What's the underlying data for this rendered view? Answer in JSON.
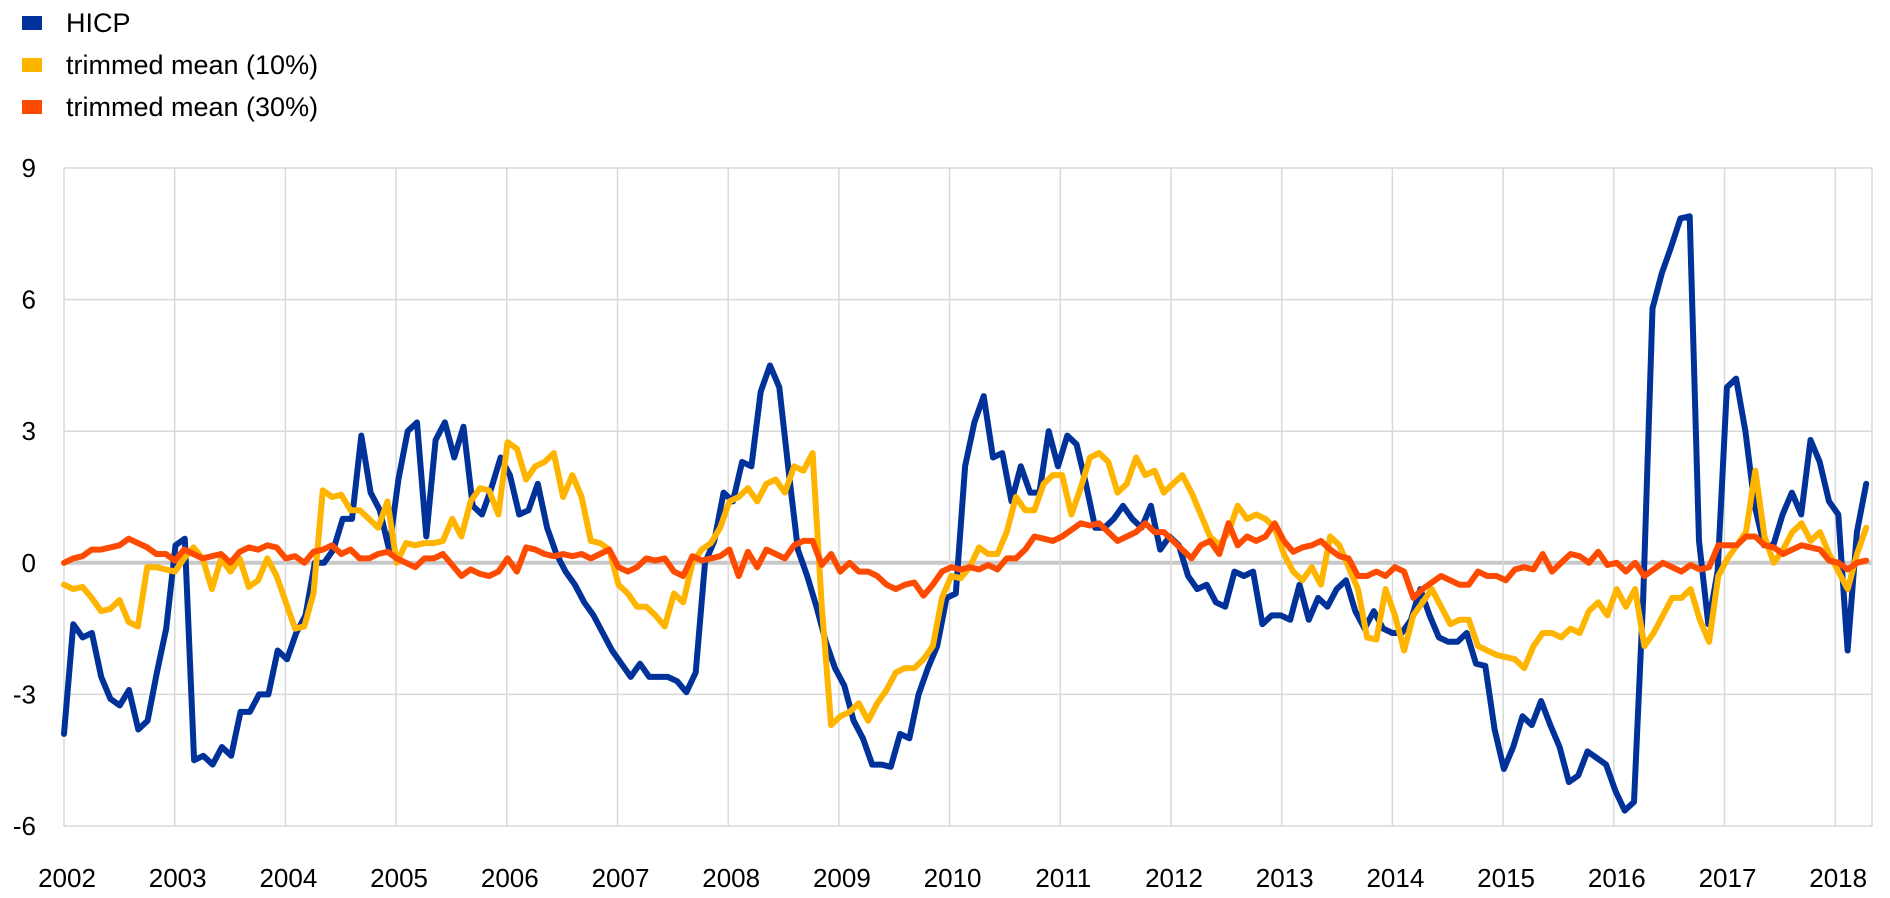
{
  "chart_data": {
    "type": "line",
    "title": "",
    "xlabel": "",
    "ylabel": "",
    "ylim": [
      -6,
      9
    ],
    "yticks": [
      "9",
      "6",
      "3",
      "0",
      "-3",
      "-6"
    ],
    "ytick_values": [
      9,
      6,
      3,
      0,
      -3,
      -6
    ],
    "xticks": [
      "2002",
      "2003",
      "2004",
      "2005",
      "2006",
      "2007",
      "2008",
      "2009",
      "2010",
      "2011",
      "2012",
      "2013",
      "2014",
      "2015",
      "2016",
      "2017",
      "2018"
    ],
    "xlim": [
      2002.0,
      2018.33
    ],
    "grid": true,
    "legend_position": "top-left",
    "x_start": 2002.0,
    "x_end": 2018.28,
    "sampling": "approximately monthly, evenly spaced from x_start to x_end",
    "series": [
      {
        "name": "HICP",
        "color": "#003299",
        "values": [
          -3.9,
          -1.4,
          -1.7,
          -1.6,
          -2.6,
          -3.1,
          -3.25,
          -2.9,
          -3.8,
          -3.6,
          -2.5,
          -1.5,
          0.4,
          0.55,
          -4.5,
          -4.4,
          -4.6,
          -4.2,
          -4.4,
          -3.4,
          -3.4,
          -3.0,
          -3.0,
          -2.0,
          -2.2,
          -1.6,
          -1.2,
          0.0,
          0.0,
          0.3,
          1.0,
          1.0,
          2.9,
          1.6,
          1.2,
          0.3,
          1.9,
          3.0,
          3.2,
          0.6,
          2.8,
          3.2,
          2.4,
          3.1,
          1.3,
          1.1,
          1.7,
          2.4,
          2.0,
          1.1,
          1.2,
          1.8,
          0.8,
          0.2,
          -0.2,
          -0.5,
          -0.9,
          -1.2,
          -1.6,
          -2.0,
          -2.3,
          -2.6,
          -2.3,
          -2.6,
          -2.6,
          -2.6,
          -2.7,
          -2.95,
          -2.5,
          0.0,
          0.5,
          1.6,
          1.4,
          2.3,
          2.2,
          3.9,
          4.5,
          4.0,
          2.1,
          0.3,
          -0.3,
          -1.0,
          -1.8,
          -2.4,
          -2.8,
          -3.6,
          -4.0,
          -4.6,
          -4.6,
          -4.65,
          -3.9,
          -4.0,
          -3.0,
          -2.4,
          -1.9,
          -0.8,
          -0.7,
          2.2,
          3.2,
          3.8,
          2.4,
          2.5,
          1.4,
          2.2,
          1.6,
          1.6,
          3.0,
          2.2,
          2.9,
          2.7,
          1.8,
          0.8,
          0.8,
          1.0,
          1.3,
          1.0,
          0.8,
          1.3,
          0.3,
          0.6,
          0.4,
          -0.3,
          -0.6,
          -0.5,
          -0.9,
          -1.0,
          -0.2,
          -0.3,
          -0.2,
          -1.4,
          -1.2,
          -1.2,
          -1.3,
          -0.5,
          -1.3,
          -0.8,
          -1.0,
          -0.6,
          -0.4,
          -1.1,
          -1.5,
          -1.1,
          -1.5,
          -1.6,
          -1.6,
          -1.3,
          -0.6,
          -1.2,
          -1.7,
          -1.8,
          -1.8,
          -1.6,
          -2.3,
          -2.35,
          -3.8,
          -4.7,
          -4.2,
          -3.5,
          -3.7,
          -3.15,
          -3.7,
          -4.2,
          -5.0,
          -4.85,
          -4.3,
          -4.45,
          -4.6,
          -5.2,
          -5.65,
          -5.45,
          -0.8,
          5.8,
          6.6,
          7.2,
          7.85,
          7.9,
          0.5,
          -1.4,
          -0.2,
          4.0,
          4.2,
          3.0,
          1.3,
          0.4,
          0.4,
          1.1,
          1.6,
          1.1,
          2.8,
          2.3,
          1.4,
          1.1,
          -2.0,
          0.7,
          1.8
        ]
      },
      {
        "name": "trimmed mean (10%)",
        "color": "#FFB400",
        "values": [
          -0.5,
          -0.6,
          -0.55,
          -0.8,
          -1.1,
          -1.05,
          -0.85,
          -1.35,
          -1.45,
          -0.1,
          -0.1,
          -0.15,
          -0.2,
          0.1,
          0.35,
          0.1,
          -0.6,
          0.1,
          -0.2,
          0.1,
          -0.55,
          -0.4,
          0.1,
          -0.3,
          -0.9,
          -1.5,
          -1.45,
          -0.7,
          1.65,
          1.5,
          1.55,
          1.2,
          1.2,
          1.0,
          0.8,
          1.4,
          0.0,
          0.45,
          0.4,
          0.45,
          0.45,
          0.5,
          1.0,
          0.6,
          1.4,
          1.7,
          1.65,
          1.1,
          2.75,
          2.6,
          1.9,
          2.2,
          2.3,
          2.5,
          1.5,
          2.0,
          1.5,
          0.5,
          0.45,
          0.3,
          -0.5,
          -0.7,
          -1.0,
          -1.0,
          -1.2,
          -1.45,
          -0.7,
          -0.9,
          0.0,
          0.3,
          0.45,
          0.8,
          1.4,
          1.5,
          1.7,
          1.4,
          1.8,
          1.9,
          1.6,
          2.2,
          2.1,
          2.5,
          -1.0,
          -3.7,
          -3.5,
          -3.4,
          -3.2,
          -3.6,
          -3.2,
          -2.9,
          -2.5,
          -2.4,
          -2.4,
          -2.2,
          -1.9,
          -0.8,
          -0.3,
          -0.35,
          -0.1,
          0.35,
          0.2,
          0.2,
          0.7,
          1.5,
          1.2,
          1.2,
          1.8,
          2.0,
          2.0,
          1.1,
          1.7,
          2.4,
          2.5,
          2.3,
          1.6,
          1.8,
          2.4,
          2.0,
          2.1,
          1.6,
          1.8,
          2.0,
          1.6,
          1.1,
          0.6,
          0.4,
          0.7,
          1.3,
          1.0,
          1.1,
          1.0,
          0.8,
          0.2,
          -0.2,
          -0.4,
          -0.1,
          -0.5,
          0.6,
          0.4,
          -0.1,
          -0.6,
          -1.7,
          -1.75,
          -0.6,
          -1.2,
          -2.0,
          -1.2,
          -0.9,
          -0.6,
          -1.0,
          -1.4,
          -1.3,
          -1.3,
          -1.9,
          -2.0,
          -2.1,
          -2.15,
          -2.2,
          -2.4,
          -1.9,
          -1.6,
          -1.6,
          -1.7,
          -1.5,
          -1.6,
          -1.1,
          -0.9,
          -1.2,
          -0.6,
          -1.0,
          -0.6,
          -1.9,
          -1.6,
          -1.2,
          -0.8,
          -0.8,
          -0.6,
          -1.3,
          -1.8,
          -0.3,
          0.1,
          0.4,
          0.7,
          2.1,
          0.6,
          0.0,
          0.3,
          0.7,
          0.9,
          0.5,
          0.7,
          0.2,
          -0.2,
          -0.6,
          0.2,
          0.8
        ]
      },
      {
        "name": "trimmed mean (30%)",
        "color": "#FF4B00",
        "values": [
          0.0,
          0.1,
          0.15,
          0.3,
          0.3,
          0.35,
          0.4,
          0.55,
          0.45,
          0.35,
          0.2,
          0.2,
          0.05,
          0.3,
          0.2,
          0.1,
          0.15,
          0.2,
          0.0,
          0.25,
          0.35,
          0.3,
          0.4,
          0.35,
          0.1,
          0.15,
          0.0,
          0.25,
          0.3,
          0.4,
          0.2,
          0.3,
          0.1,
          0.1,
          0.2,
          0.25,
          0.1,
          0.0,
          -0.1,
          0.1,
          0.1,
          0.2,
          -0.05,
          -0.3,
          -0.15,
          -0.25,
          -0.3,
          -0.2,
          0.1,
          -0.2,
          0.35,
          0.3,
          0.2,
          0.15,
          0.2,
          0.15,
          0.2,
          0.1,
          0.2,
          0.3,
          -0.1,
          -0.2,
          -0.1,
          0.1,
          0.05,
          0.1,
          -0.2,
          -0.3,
          0.15,
          0.05,
          0.1,
          0.15,
          0.3,
          -0.3,
          0.25,
          -0.1,
          0.3,
          0.2,
          0.1,
          0.4,
          0.5,
          0.5,
          -0.05,
          0.2,
          -0.2,
          0.0,
          -0.2,
          -0.2,
          -0.3,
          -0.5,
          -0.6,
          -0.5,
          -0.45,
          -0.75,
          -0.5,
          -0.2,
          -0.1,
          -0.15,
          -0.1,
          -0.15,
          -0.05,
          -0.15,
          0.1,
          0.1,
          0.3,
          0.6,
          0.55,
          0.5,
          0.6,
          0.75,
          0.9,
          0.85,
          0.9,
          0.7,
          0.5,
          0.6,
          0.7,
          0.9,
          0.7,
          0.7,
          0.5,
          0.3,
          0.1,
          0.4,
          0.5,
          0.2,
          0.9,
          0.4,
          0.6,
          0.5,
          0.6,
          0.9,
          0.5,
          0.25,
          0.35,
          0.4,
          0.5,
          0.3,
          0.15,
          0.1,
          -0.3,
          -0.3,
          -0.2,
          -0.3,
          -0.1,
          -0.2,
          -0.8,
          -0.6,
          -0.45,
          -0.3,
          -0.4,
          -0.5,
          -0.5,
          -0.2,
          -0.3,
          -0.3,
          -0.4,
          -0.15,
          -0.1,
          -0.15,
          0.2,
          -0.2,
          0.0,
          0.2,
          0.15,
          0.0,
          0.25,
          -0.05,
          0.0,
          -0.2,
          0.0,
          -0.3,
          -0.15,
          0.0,
          -0.1,
          -0.2,
          -0.05,
          -0.15,
          -0.1,
          0.4,
          0.4,
          0.4,
          0.6,
          0.6,
          0.4,
          0.35,
          0.2,
          0.3,
          0.4,
          0.35,
          0.3,
          0.05,
          0.0,
          -0.15,
          0.0,
          0.05
        ]
      }
    ]
  }
}
